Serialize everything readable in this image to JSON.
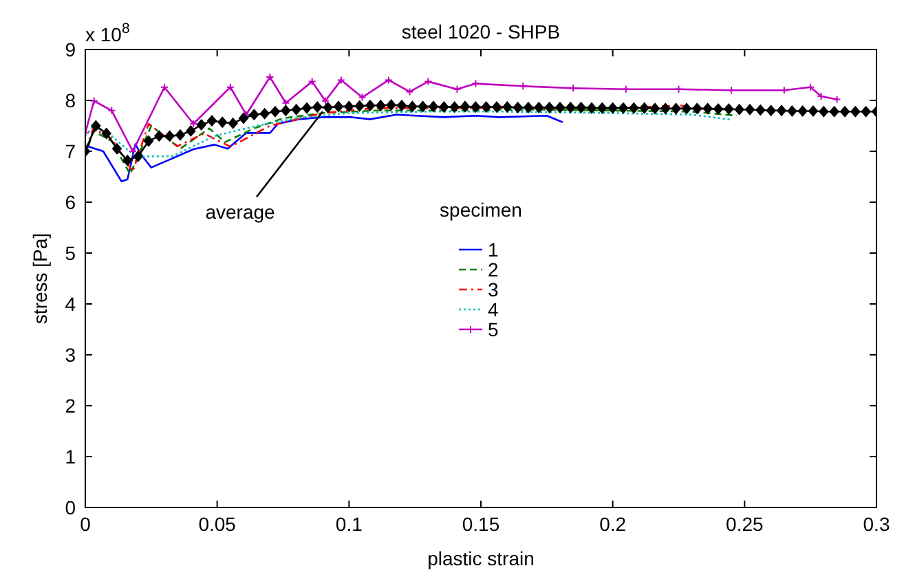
{
  "chart_data": {
    "type": "line",
    "title": "steel 1020 - SHPB",
    "xlabel": "plastic strain",
    "ylabel": "stress [Pa]",
    "legend_title": "specimen",
    "legend": "center",
    "grid": false,
    "xlim": [
      0,
      0.3
    ],
    "xticks": [
      0,
      0.05,
      0.1,
      0.15,
      0.2,
      0.25,
      0.3
    ],
    "ylim": [
      0,
      9
    ],
    "yticks": [
      0,
      1,
      2,
      3,
      4,
      5,
      6,
      7,
      8,
      9
    ],
    "annotations": [
      "x 10$^{8}$",
      {
        "text": "average",
        "x": 0.09,
        "y": 7.78
      }
    ],
    "series": [
      {
        "name": "1",
        "color": "#0000ff",
        "line_style": "solid",
        "marker": "none",
        "x": [
          0,
          0.0068,
          0.0137,
          0.016,
          0.019,
          0.021,
          0.025,
          0.033,
          0.041,
          0.049,
          0.054,
          0.061,
          0.07,
          0.073,
          0.081,
          0.09,
          0.101,
          0.108,
          0.118,
          0.136,
          0.148,
          0.157,
          0.175,
          0.181
        ],
        "values": [
          7.11,
          7.0,
          6.41,
          6.45,
          7.14,
          6.95,
          6.68,
          6.86,
          7.04,
          7.13,
          7.05,
          7.36,
          7.36,
          7.54,
          7.63,
          7.67,
          7.67,
          7.63,
          7.72,
          7.67,
          7.7,
          7.67,
          7.7,
          7.57
        ]
      },
      {
        "name": "2",
        "color": "#008000",
        "line_style": "dashed",
        "marker": "none",
        "x": [
          0,
          0.003,
          0.01,
          0.017,
          0.025,
          0.036,
          0.047,
          0.053,
          0.064,
          0.075,
          0.09,
          0.11,
          0.14,
          0.17,
          0.2,
          0.23,
          0.247
        ],
        "values": [
          6.9,
          7.4,
          7.2,
          6.55,
          7.5,
          7.05,
          7.45,
          7.18,
          7.45,
          7.65,
          7.75,
          7.8,
          7.8,
          7.82,
          7.8,
          7.78,
          7.7
        ]
      },
      {
        "name": "3",
        "color": "#ff0000",
        "line_style": "dashdot",
        "marker": "none",
        "x": [
          0,
          0.003,
          0.01,
          0.018,
          0.024,
          0.035,
          0.045,
          0.055,
          0.07,
          0.09,
          0.11,
          0.14,
          0.17,
          0.2,
          0.226,
          0.23,
          0.245
        ],
        "values": [
          7.0,
          7.45,
          7.25,
          6.6,
          7.54,
          7.1,
          7.35,
          7.09,
          7.5,
          7.75,
          7.85,
          7.85,
          7.85,
          7.84,
          7.9,
          7.84,
          7.82
        ]
      },
      {
        "name": "4",
        "color": "#00bfbf",
        "line_style": "dotted",
        "marker": "none",
        "x": [
          0,
          0.003,
          0.01,
          0.019,
          0.033,
          0.049,
          0.065,
          0.08,
          0.1,
          0.13,
          0.16,
          0.2,
          0.23,
          0.245
        ],
        "values": [
          7.3,
          7.5,
          7.3,
          6.9,
          6.9,
          7.3,
          7.5,
          7.65,
          7.75,
          7.78,
          7.78,
          7.75,
          7.72,
          7.62
        ]
      },
      {
        "name": "5",
        "color": "#bf00bf",
        "line_style": "solid",
        "marker": "cross",
        "x": [
          0,
          0.0033,
          0.01,
          0.018,
          0.03,
          0.041,
          0.055,
          0.061,
          0.07,
          0.076,
          0.086,
          0.091,
          0.097,
          0.105,
          0.115,
          0.123,
          0.13,
          0.141,
          0.148,
          0.166,
          0.185,
          0.205,
          0.225,
          0.245,
          0.265,
          0.275,
          0.279,
          0.285
        ],
        "values": [
          7.36,
          7.99,
          7.8,
          7.0,
          8.26,
          7.54,
          8.26,
          7.72,
          8.46,
          7.95,
          8.37,
          7.99,
          8.4,
          8.06,
          8.4,
          8.17,
          8.37,
          8.22,
          8.33,
          8.28,
          8.24,
          8.22,
          8.22,
          8.2,
          8.2,
          8.26,
          8.08,
          8.02
        ]
      },
      {
        "color": "#000000",
        "line_style": "solid",
        "marker": "diamond",
        "x": [
          0,
          0.004,
          0.008,
          0.012,
          0.016,
          0.02,
          0.024,
          0.028,
          0.032,
          0.036,
          0.04,
          0.044,
          0.048,
          0.052,
          0.056,
          0.06,
          0.064,
          0.068,
          0.072,
          0.076,
          0.08,
          0.084,
          0.088,
          0.092,
          0.096,
          0.1,
          0.104,
          0.108,
          0.112,
          0.116,
          0.12,
          0.124,
          0.128,
          0.132,
          0.136,
          0.14,
          0.144,
          0.148,
          0.152,
          0.156,
          0.16,
          0.164,
          0.168,
          0.172,
          0.176,
          0.18,
          0.184,
          0.188,
          0.192,
          0.196,
          0.2,
          0.204,
          0.208,
          0.212,
          0.216,
          0.22,
          0.224,
          0.228,
          0.232,
          0.236,
          0.24,
          0.244,
          0.248,
          0.252,
          0.256,
          0.26,
          0.264,
          0.268,
          0.272,
          0.276,
          0.28,
          0.284,
          0.288,
          0.292,
          0.296,
          0.3
        ],
        "values": [
          7.0,
          7.5,
          7.35,
          7.05,
          6.82,
          6.9,
          7.2,
          7.3,
          7.3,
          7.32,
          7.4,
          7.52,
          7.6,
          7.57,
          7.55,
          7.65,
          7.72,
          7.74,
          7.78,
          7.8,
          7.82,
          7.85,
          7.87,
          7.86,
          7.88,
          7.88,
          7.89,
          7.9,
          7.9,
          7.91,
          7.9,
          7.88,
          7.88,
          7.88,
          7.87,
          7.87,
          7.88,
          7.87,
          7.87,
          7.87,
          7.87,
          7.86,
          7.86,
          7.86,
          7.86,
          7.86,
          7.86,
          7.86,
          7.85,
          7.85,
          7.85,
          7.85,
          7.85,
          7.85,
          7.84,
          7.84,
          7.84,
          7.84,
          7.84,
          7.84,
          7.83,
          7.83,
          7.82,
          7.82,
          7.81,
          7.8,
          7.8,
          7.79,
          7.79,
          7.79,
          7.78,
          7.78,
          7.78,
          7.78,
          7.78,
          7.78
        ]
      }
    ]
  }
}
